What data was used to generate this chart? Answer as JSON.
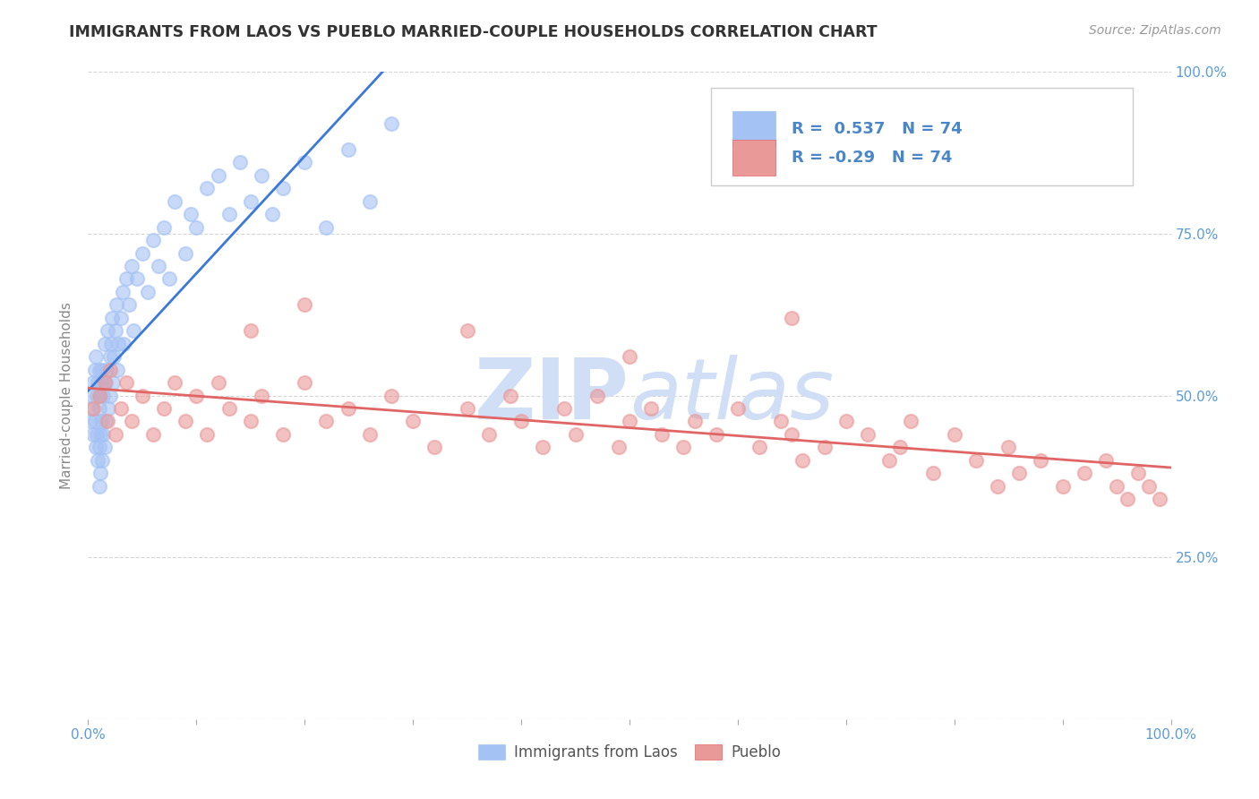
{
  "title": "IMMIGRANTS FROM LAOS VS PUEBLO MARRIED-COUPLE HOUSEHOLDS CORRELATION CHART",
  "source": "Source: ZipAtlas.com",
  "ylabel": "Married-couple Households",
  "legend_label1": "Immigrants from Laos",
  "legend_label2": "Pueblo",
  "r1": 0.537,
  "r2": -0.29,
  "n1": 74,
  "n2": 74,
  "blue_color": "#a4c2f4",
  "pink_color": "#ea9999",
  "blue_line_color": "#3c78d8",
  "pink_line_color": "#e06666",
  "watermark_zip": "ZIP",
  "watermark_atlas": "atlas",
  "watermark_color": "#d0dff5",
  "grid_color": "#cccccc",
  "tick_color": "#5b9bd5",
  "ylabel_color": "#888888",
  "title_color": "#333333",
  "source_color": "#999999",
  "blue_x": [
    0.002,
    0.003,
    0.004,
    0.005,
    0.005,
    0.006,
    0.006,
    0.007,
    0.007,
    0.008,
    0.008,
    0.009,
    0.009,
    0.01,
    0.01,
    0.01,
    0.01,
    0.011,
    0.011,
    0.011,
    0.012,
    0.012,
    0.013,
    0.013,
    0.014,
    0.014,
    0.015,
    0.015,
    0.016,
    0.016,
    0.017,
    0.018,
    0.019,
    0.02,
    0.02,
    0.021,
    0.022,
    0.023,
    0.024,
    0.025,
    0.026,
    0.027,
    0.028,
    0.03,
    0.032,
    0.033,
    0.035,
    0.038,
    0.04,
    0.042,
    0.045,
    0.05,
    0.055,
    0.06,
    0.065,
    0.07,
    0.075,
    0.08,
    0.09,
    0.095,
    0.1,
    0.11,
    0.12,
    0.13,
    0.14,
    0.15,
    0.16,
    0.17,
    0.18,
    0.2,
    0.22,
    0.24,
    0.26,
    0.28
  ],
  "blue_y": [
    0.46,
    0.48,
    0.5,
    0.52,
    0.44,
    0.54,
    0.46,
    0.56,
    0.42,
    0.5,
    0.44,
    0.52,
    0.4,
    0.54,
    0.48,
    0.42,
    0.36,
    0.5,
    0.44,
    0.38,
    0.52,
    0.46,
    0.54,
    0.4,
    0.5,
    0.44,
    0.58,
    0.42,
    0.52,
    0.46,
    0.54,
    0.6,
    0.48,
    0.56,
    0.5,
    0.58,
    0.62,
    0.52,
    0.56,
    0.6,
    0.64,
    0.54,
    0.58,
    0.62,
    0.66,
    0.58,
    0.68,
    0.64,
    0.7,
    0.6,
    0.68,
    0.72,
    0.66,
    0.74,
    0.7,
    0.76,
    0.68,
    0.8,
    0.72,
    0.78,
    0.76,
    0.82,
    0.84,
    0.78,
    0.86,
    0.8,
    0.84,
    0.78,
    0.82,
    0.86,
    0.76,
    0.88,
    0.8,
    0.92
  ],
  "pink_x": [
    0.005,
    0.01,
    0.015,
    0.018,
    0.02,
    0.025,
    0.03,
    0.035,
    0.04,
    0.05,
    0.06,
    0.07,
    0.08,
    0.09,
    0.1,
    0.11,
    0.12,
    0.13,
    0.15,
    0.16,
    0.18,
    0.2,
    0.22,
    0.24,
    0.26,
    0.28,
    0.3,
    0.32,
    0.35,
    0.37,
    0.39,
    0.4,
    0.42,
    0.44,
    0.45,
    0.47,
    0.49,
    0.5,
    0.52,
    0.53,
    0.55,
    0.56,
    0.58,
    0.6,
    0.62,
    0.64,
    0.65,
    0.66,
    0.68,
    0.7,
    0.72,
    0.74,
    0.75,
    0.76,
    0.78,
    0.8,
    0.82,
    0.84,
    0.85,
    0.86,
    0.88,
    0.9,
    0.92,
    0.94,
    0.95,
    0.96,
    0.97,
    0.98,
    0.99,
    0.15,
    0.2,
    0.35,
    0.5,
    0.65
  ],
  "pink_y": [
    0.48,
    0.5,
    0.52,
    0.46,
    0.54,
    0.44,
    0.48,
    0.52,
    0.46,
    0.5,
    0.44,
    0.48,
    0.52,
    0.46,
    0.5,
    0.44,
    0.52,
    0.48,
    0.46,
    0.5,
    0.44,
    0.52,
    0.46,
    0.48,
    0.44,
    0.5,
    0.46,
    0.42,
    0.48,
    0.44,
    0.5,
    0.46,
    0.42,
    0.48,
    0.44,
    0.5,
    0.42,
    0.46,
    0.48,
    0.44,
    0.42,
    0.46,
    0.44,
    0.48,
    0.42,
    0.46,
    0.44,
    0.4,
    0.42,
    0.46,
    0.44,
    0.4,
    0.42,
    0.46,
    0.38,
    0.44,
    0.4,
    0.36,
    0.42,
    0.38,
    0.4,
    0.36,
    0.38,
    0.4,
    0.36,
    0.34,
    0.38,
    0.36,
    0.34,
    0.6,
    0.64,
    0.6,
    0.56,
    0.62
  ]
}
